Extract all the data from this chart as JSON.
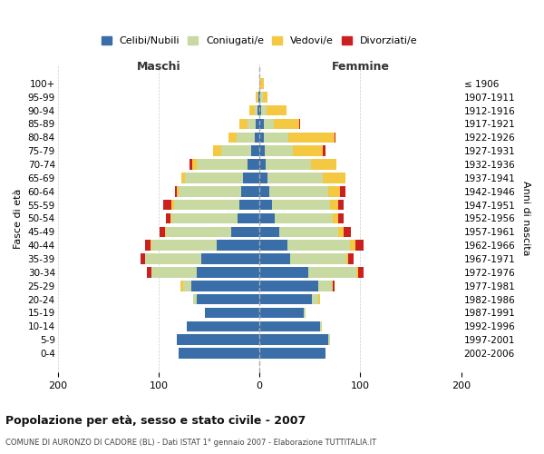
{
  "age_groups": [
    "0-4",
    "5-9",
    "10-14",
    "15-19",
    "20-24",
    "25-29",
    "30-34",
    "35-39",
    "40-44",
    "45-49",
    "50-54",
    "55-59",
    "60-64",
    "65-69",
    "70-74",
    "75-79",
    "80-84",
    "85-89",
    "90-94",
    "95-99",
    "100+"
  ],
  "birth_years": [
    "2002-2006",
    "1997-2001",
    "1992-1996",
    "1987-1991",
    "1982-1986",
    "1977-1981",
    "1972-1976",
    "1967-1971",
    "1962-1966",
    "1957-1961",
    "1952-1956",
    "1947-1951",
    "1942-1946",
    "1937-1941",
    "1932-1936",
    "1927-1931",
    "1922-1926",
    "1917-1921",
    "1912-1916",
    "1907-1911",
    "≤ 1906"
  ],
  "males": {
    "celibi": [
      80,
      82,
      72,
      54,
      62,
      68,
      62,
      58,
      42,
      28,
      22,
      20,
      18,
      16,
      12,
      8,
      5,
      4,
      2,
      1,
      0
    ],
    "coniugati": [
      0,
      0,
      0,
      0,
      4,
      8,
      45,
      55,
      65,
      65,
      65,
      65,
      62,
      58,
      50,
      30,
      18,
      8,
      3,
      1,
      0
    ],
    "vedovi": [
      0,
      0,
      0,
      0,
      0,
      2,
      0,
      0,
      1,
      1,
      1,
      2,
      2,
      3,
      5,
      8,
      8,
      8,
      5,
      2,
      0
    ],
    "divorziati": [
      0,
      0,
      0,
      0,
      0,
      0,
      5,
      5,
      5,
      5,
      5,
      8,
      2,
      0,
      2,
      0,
      0,
      0,
      0,
      0,
      0
    ]
  },
  "females": {
    "nubili": [
      65,
      68,
      60,
      44,
      52,
      58,
      48,
      30,
      28,
      20,
      15,
      12,
      10,
      8,
      6,
      5,
      4,
      4,
      2,
      1,
      0
    ],
    "coniugate": [
      0,
      2,
      2,
      2,
      6,
      14,
      48,
      56,
      62,
      58,
      58,
      58,
      58,
      55,
      45,
      28,
      25,
      10,
      5,
      2,
      0
    ],
    "vedove": [
      0,
      0,
      0,
      0,
      2,
      1,
      2,
      2,
      5,
      5,
      5,
      8,
      12,
      22,
      25,
      30,
      45,
      25,
      20,
      5,
      4
    ],
    "divorziate": [
      0,
      0,
      0,
      0,
      0,
      1,
      5,
      5,
      8,
      8,
      5,
      5,
      5,
      0,
      0,
      2,
      1,
      1,
      0,
      0,
      0
    ]
  },
  "colors": {
    "celibi": "#3a6ea8",
    "coniugati": "#c8daa2",
    "vedovi": "#f5c842",
    "divorziati": "#cc2020"
  },
  "xlim": 200,
  "title": "Popolazione per età, sesso e stato civile - 2007",
  "subtitle": "COMUNE DI AURONZO DI CADORE (BL) - Dati ISTAT 1° gennaio 2007 - Elaborazione TUTTITALIA.IT",
  "ylabel_left": "Fasce di età",
  "ylabel_right": "Anni di nascita",
  "header_left": "Maschi",
  "header_right": "Femmine",
  "legend_labels": [
    "Celibi/Nubili",
    "Coniugati/e",
    "Vedovi/e",
    "Divorziati/e"
  ]
}
